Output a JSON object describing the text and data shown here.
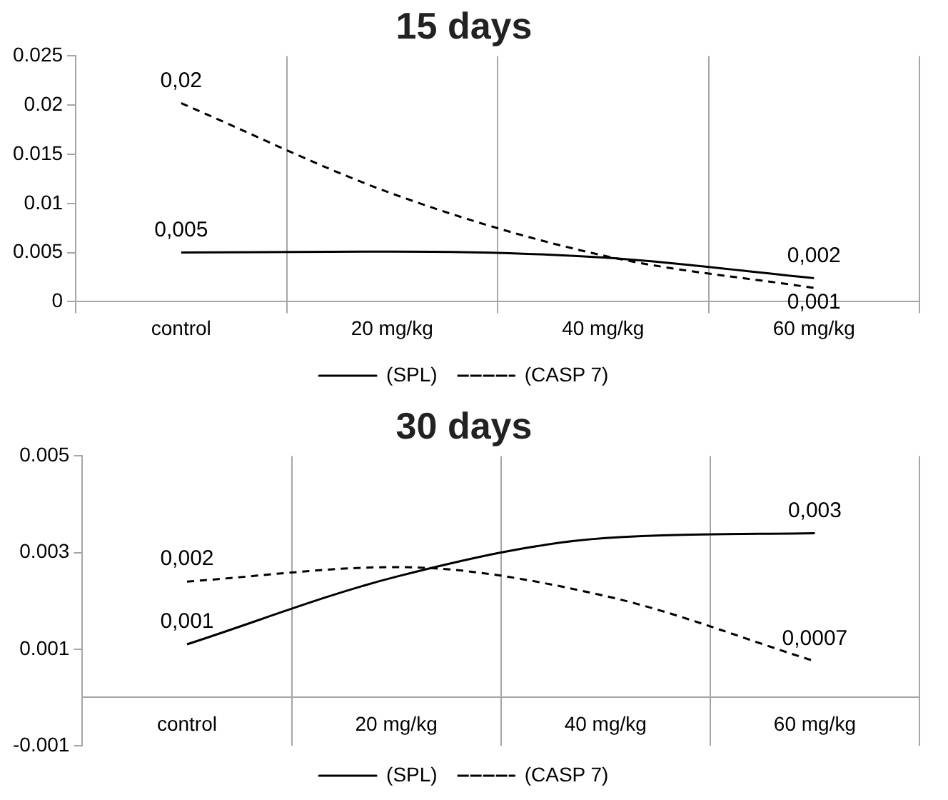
{
  "chart_data": [
    {
      "type": "line",
      "title": "15 days",
      "categories": [
        "control",
        "20 mg/kg",
        "40 mg/kg",
        "60 mg/kg"
      ],
      "series": [
        {
          "name": "(SPL)",
          "color": "#000000",
          "line_style": "solid",
          "values": [
            0.005,
            0.0051,
            0.0045,
            0.0024
          ],
          "value_labels": [
            "0,005",
            null,
            null,
            "0,002"
          ]
        },
        {
          "name": "(CASP 7)",
          "color": "#000000",
          "line_style": "dashed",
          "values": [
            0.0202,
            0.011,
            0.0047,
            0.0014
          ],
          "value_labels": [
            "0,02",
            null,
            null,
            "0,001"
          ]
        }
      ],
      "ylim": [
        0,
        0.025
      ],
      "yticks": [
        0,
        0.005,
        0.01,
        0.015,
        0.02,
        0.025
      ],
      "grid": "x",
      "legend": "bottom",
      "marker": "none"
    },
    {
      "type": "line",
      "title": "30 days",
      "categories": [
        "control",
        "20 mg/kg",
        "40 mg/kg",
        "60 mg/kg"
      ],
      "series": [
        {
          "name": "(SPL)",
          "color": "#000000",
          "line_style": "solid",
          "values": [
            0.0011,
            0.0025,
            0.0033,
            0.0034
          ],
          "value_labels": [
            "0,001",
            null,
            null,
            "0,003"
          ]
        },
        {
          "name": "(CASP 7)",
          "color": "#000000",
          "line_style": "dashed",
          "values": [
            0.0024,
            0.0027,
            0.0021,
            0.00075
          ],
          "value_labels": [
            "0,002",
            null,
            null,
            "0,0007"
          ]
        }
      ],
      "ylim": [
        -0.001,
        0.005
      ],
      "yticks": [
        -0.001,
        0.001,
        0.003,
        0.005
      ],
      "grid": "x",
      "legend": "bottom",
      "marker": "none"
    }
  ]
}
